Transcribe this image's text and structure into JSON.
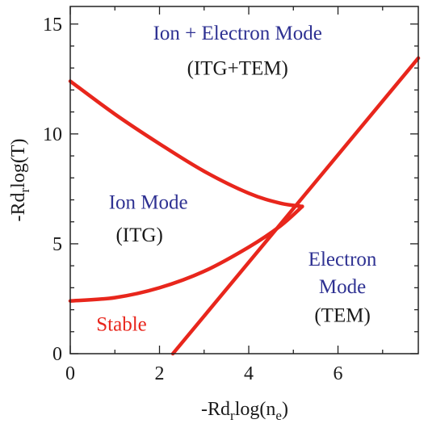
{
  "colors": {
    "curve": "#e8261c",
    "blue_text": "#2e3192",
    "black_text": "#1a1a1a",
    "red_text": "#e8261c",
    "axis": "#222222"
  },
  "chart_data": {
    "type": "line",
    "title": "",
    "xlabel": {
      "base": "-Rd",
      "sub1": "r",
      "mid": "log(n",
      "sub2": "e",
      "end": ")"
    },
    "ylabel": {
      "base": "-Rd",
      "sub1": "r",
      "end": "log(T)"
    },
    "xlim": [
      0,
      7.8
    ],
    "ylim": [
      0,
      15.8
    ],
    "xticks": [
      {
        "value": 0,
        "label": "0"
      },
      {
        "value": 2,
        "label": "2"
      },
      {
        "value": 4,
        "label": "4"
      },
      {
        "value": 6,
        "label": "6"
      }
    ],
    "yticks": [
      {
        "value": 0,
        "label": "0"
      },
      {
        "value": 5,
        "label": "5"
      },
      {
        "value": 10,
        "label": "10"
      },
      {
        "value": 15,
        "label": "15"
      }
    ],
    "series": [
      {
        "points": [
          [
            0,
            12.4
          ],
          [
            1,
            10.9
          ],
          [
            2,
            9.55
          ],
          [
            3,
            8.3
          ],
          [
            4,
            7.3
          ],
          [
            4.7,
            6.85
          ],
          [
            5.2,
            6.7
          ]
        ]
      },
      {
        "points": [
          [
            0,
            2.4
          ],
          [
            1,
            2.55
          ],
          [
            2,
            3.0
          ],
          [
            3,
            3.75
          ],
          [
            4,
            4.85
          ],
          [
            4.7,
            5.8
          ],
          [
            5.2,
            6.7
          ]
        ]
      },
      {
        "points": [
          [
            2.3,
            0
          ],
          [
            7.8,
            13.45
          ]
        ]
      }
    ],
    "annotations": [
      {
        "id": "ion-electron-title",
        "text": "Ion + Electron Mode",
        "x": 3.75,
        "y": 14.3,
        "color": "blue"
      },
      {
        "id": "ion-electron-sub",
        "text": "(ITG+TEM)",
        "x": 3.75,
        "y": 12.7,
        "color": "black"
      },
      {
        "id": "ion-title",
        "text": "Ion Mode",
        "x": 1.75,
        "y": 6.6,
        "color": "blue"
      },
      {
        "id": "ion-sub",
        "text": "(ITG)",
        "x": 1.55,
        "y": 5.1,
        "color": "black"
      },
      {
        "id": "electron-title-1",
        "text": "Electron",
        "x": 6.1,
        "y": 4.0,
        "color": "blue"
      },
      {
        "id": "electron-title-2",
        "text": "Mode",
        "x": 6.1,
        "y": 2.75,
        "color": "blue"
      },
      {
        "id": "electron-sub",
        "text": "(TEM)",
        "x": 6.1,
        "y": 1.45,
        "color": "black"
      },
      {
        "id": "stable-label",
        "text": "Stable",
        "x": 1.15,
        "y": 1.05,
        "color": "red"
      }
    ]
  }
}
